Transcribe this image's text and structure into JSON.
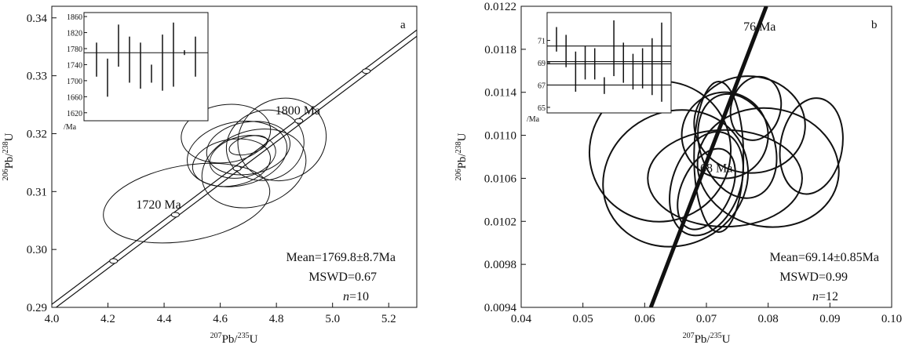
{
  "chart_data": [
    {
      "panel": "a",
      "type": "scatter",
      "xlabel": "207Pb/235U",
      "ylabel": "206Pb/238U",
      "xlim": [
        4.0,
        5.3
      ],
      "ylim": [
        0.29,
        0.342
      ],
      "x_ticks": [
        "4.0",
        "4.2",
        "4.4",
        "4.6",
        "4.8",
        "5.0",
        "5.2"
      ],
      "y_ticks": [
        "0.29",
        "0.30",
        "0.31",
        "0.32",
        "0.33",
        "0.34"
      ],
      "concordia_ages": [
        {
          "age_ma": 1700,
          "x": 4.22,
          "y": 0.298,
          "label": ""
        },
        {
          "age_ma": 1720,
          "x": 4.44,
          "y": 0.306,
          "label": "1720 Ma"
        },
        {
          "age_ma": 1760,
          "x": 4.66,
          "y": 0.314,
          "label": ""
        },
        {
          "age_ma": 1800,
          "x": 4.88,
          "y": 0.3222,
          "label": "1800 Ma"
        },
        {
          "age_ma": 1840,
          "x": 5.12,
          "y": 0.3308,
          "label": ""
        }
      ],
      "ellipses": [
        {
          "cx": 4.66,
          "cy": 0.3165,
          "rx": 0.18,
          "ry": 0.0055,
          "rot": -12
        },
        {
          "cx": 4.7,
          "cy": 0.3175,
          "rx": 0.15,
          "ry": 0.0045,
          "rot": -10
        },
        {
          "cx": 4.68,
          "cy": 0.316,
          "rx": 0.12,
          "ry": 0.0035,
          "rot": -15
        },
        {
          "cx": 4.7,
          "cy": 0.318,
          "rx": 0.07,
          "ry": 0.0015,
          "rot": -15
        },
        {
          "cx": 4.64,
          "cy": 0.315,
          "rx": 0.14,
          "ry": 0.004,
          "rot": -10
        },
        {
          "cx": 4.76,
          "cy": 0.318,
          "rx": 0.14,
          "ry": 0.006,
          "rot": -20
        },
        {
          "cx": 4.72,
          "cy": 0.314,
          "rx": 0.19,
          "ry": 0.0065,
          "rot": -18
        },
        {
          "cx": 4.62,
          "cy": 0.32,
          "rx": 0.16,
          "ry": 0.005,
          "rot": -8
        },
        {
          "cx": 4.82,
          "cy": 0.319,
          "rx": 0.16,
          "ry": 0.007,
          "rot": -25
        },
        {
          "cx": 4.48,
          "cy": 0.308,
          "rx": 0.3,
          "ry": 0.0065,
          "rot": -10
        }
      ],
      "inset": {
        "y_ticks": [
          "1860",
          "1820",
          "1780",
          "1740",
          "1700",
          "1660",
          "1620"
        ],
        "y_unit": "/Ma",
        "ylim": [
          1600,
          1870
        ],
        "mean": 1769.8,
        "bars": [
          {
            "low": 1710,
            "high": 1795
          },
          {
            "low": 1660,
            "high": 1755
          },
          {
            "low": 1735,
            "high": 1840
          },
          {
            "low": 1695,
            "high": 1810
          },
          {
            "low": 1680,
            "high": 1795
          },
          {
            "low": 1695,
            "high": 1740
          },
          {
            "low": 1675,
            "high": 1815
          },
          {
            "low": 1685,
            "high": 1845
          },
          {
            "low": 1764,
            "high": 1776
          },
          {
            "low": 1710,
            "high": 1810
          }
        ]
      },
      "stats": {
        "mean": "Mean=1769.8±8.7Ma",
        "mswd": "MSWD=0.67",
        "n_label": "n",
        "n_value": "=10"
      }
    },
    {
      "panel": "b",
      "type": "scatter",
      "xlabel": "207Pb/235U",
      "ylabel": "206Pb/238U",
      "xlim": [
        0.04,
        0.1
      ],
      "ylim": [
        0.0094,
        0.0122
      ],
      "x_ticks": [
        "0.04",
        "0.05",
        "0.06",
        "0.07",
        "0.08",
        "0.09",
        "0.10"
      ],
      "y_ticks": [
        "0.0094",
        "0.0098",
        "0.0102",
        "0.0106",
        "0.0110",
        "0.0114",
        "0.0118",
        "0.0122"
      ],
      "concordia_ages": [
        {
          "age_ma": 68,
          "x": 0.07,
          "y": 0.0107,
          "label": "68 Ma"
        },
        {
          "age_ma": 76,
          "x": 0.077,
          "y": 0.0119,
          "label": "76 Ma"
        }
      ],
      "concordia_line": {
        "x1": 0.061,
        "y1": 0.0094,
        "x2": 0.0797,
        "y2": 0.0122
      },
      "ellipses": [
        {
          "cx": 0.0625,
          "cy": 0.01085,
          "rx": 0.0115,
          "ry": 0.00065,
          "rot": -35
        },
        {
          "cx": 0.065,
          "cy": 0.0106,
          "rx": 0.012,
          "ry": 0.00062,
          "rot": -28
        },
        {
          "cx": 0.073,
          "cy": 0.0106,
          "rx": 0.0125,
          "ry": 0.00045,
          "rot": 0
        },
        {
          "cx": 0.08,
          "cy": 0.0107,
          "rx": 0.0115,
          "ry": 0.00055,
          "rot": 10
        },
        {
          "cx": 0.077,
          "cy": 0.0111,
          "rx": 0.009,
          "ry": 0.00045,
          "rot": 5
        },
        {
          "cx": 0.087,
          "cy": 0.0109,
          "rx": 0.005,
          "ry": 0.00045,
          "rot": 10
        },
        {
          "cx": 0.072,
          "cy": 0.0108,
          "rx": 0.004,
          "ry": 0.0007,
          "rot": 0
        },
        {
          "cx": 0.07,
          "cy": 0.01055,
          "rx": 0.0055,
          "ry": 0.0005,
          "rot": 20
        },
        {
          "cx": 0.073,
          "cy": 0.011,
          "rx": 0.007,
          "ry": 0.0004,
          "rot": 30
        },
        {
          "cx": 0.075,
          "cy": 0.0109,
          "rx": 0.006,
          "ry": 0.0005,
          "rot": -20
        },
        {
          "cx": 0.07,
          "cy": 0.0105,
          "rx": 0.004,
          "ry": 0.0004,
          "rot": 25
        },
        {
          "cx": 0.078,
          "cy": 0.01125,
          "rx": 0.004,
          "ry": 0.0003,
          "rot": 15
        }
      ],
      "inset": {
        "y_ticks": [
          "71",
          "69",
          "67",
          "65"
        ],
        "y_unit": "/Ma",
        "ylim": [
          64.5,
          73.5
        ],
        "mean": 69.14,
        "bands": [
          70.5,
          69.1,
          68.9,
          67.0
        ],
        "bars": [
          {
            "low": 70.0,
            "high": 72.2
          },
          {
            "low": 68.6,
            "high": 71.5
          },
          {
            "low": 66.4,
            "high": 70.0
          },
          {
            "low": 67.5,
            "high": 70.5
          },
          {
            "low": 67.5,
            "high": 70.3
          },
          {
            "low": 66.2,
            "high": 67.7
          },
          {
            "low": 67.8,
            "high": 72.8
          },
          {
            "low": 67.2,
            "high": 70.8
          },
          {
            "low": 66.6,
            "high": 69.8
          },
          {
            "low": 66.7,
            "high": 70.3
          },
          {
            "low": 66.1,
            "high": 71.2
          },
          {
            "low": 65.5,
            "high": 72.6
          }
        ]
      },
      "stats": {
        "mean": "Mean=69.14±0.85Ma",
        "mswd": "MSWD=0.99",
        "n_label": "n",
        "n_value": "=12"
      }
    }
  ]
}
